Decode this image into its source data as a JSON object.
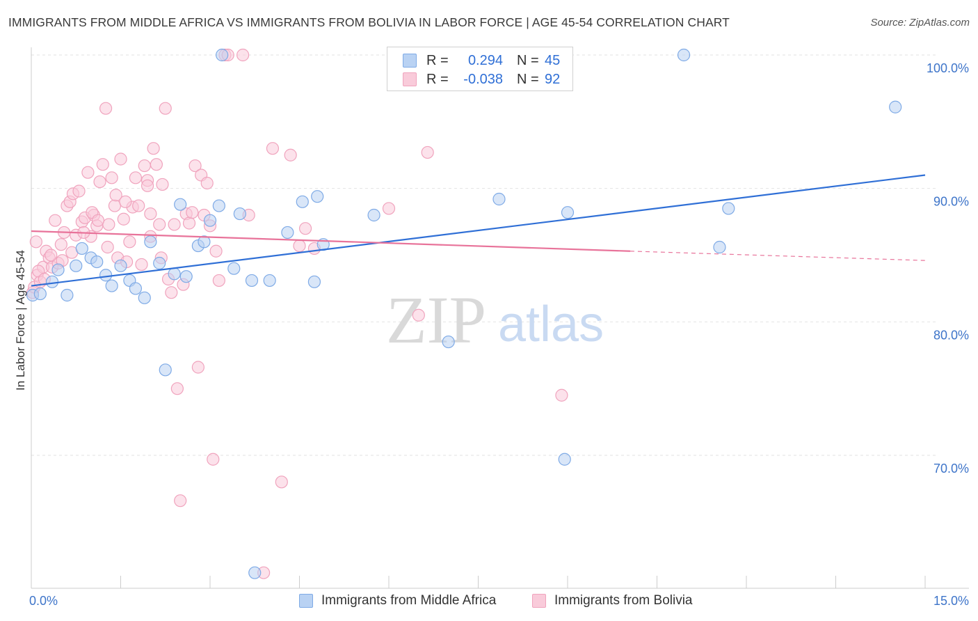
{
  "title": "IMMIGRANTS FROM MIDDLE AFRICA VS IMMIGRANTS FROM BOLIVIA IN LABOR FORCE | AGE 45-54 CORRELATION CHART",
  "source": "Source: ZipAtlas.com",
  "watermark": {
    "zip": "ZIP",
    "atlas": "atlas"
  },
  "legend": {
    "series1": {
      "r_label": "R =",
      "r_value": "0.294",
      "n_label": "N =",
      "n_value": "45"
    },
    "series2": {
      "r_label": "R =",
      "r_value": "-0.038",
      "n_label": "N =",
      "n_value": "92"
    }
  },
  "chart_data": {
    "type": "scatter",
    "title": "IMMIGRANTS FROM MIDDLE AFRICA VS IMMIGRANTS FROM BOLIVIA IN LABOR FORCE | AGE 45-54 CORRELATION CHART",
    "xlabel": "",
    "ylabel": "In Labor Force | Age 45-54",
    "xlim": [
      0,
      15
    ],
    "ylim": [
      61,
      101.5
    ],
    "x_tick_labels": [
      "0.0%",
      "15.0%"
    ],
    "y_ticks": [
      70,
      80,
      90,
      100
    ],
    "y_tick_labels": [
      "70.0%",
      "80.0%",
      "90.0%",
      "100.0%"
    ],
    "grid": true,
    "series": [
      {
        "name": "Immigrants from Middle Africa",
        "color": "#7eaae6",
        "fill": "#b9d2f3",
        "line_color": "#2f6fd6",
        "trend": {
          "x": [
            0,
            15
          ],
          "y": [
            82.7,
            91.0
          ]
        },
        "points": [
          [
            0.0,
            82.0
          ],
          [
            0.15,
            82.1
          ],
          [
            0.35,
            83.0
          ],
          [
            0.45,
            83.9
          ],
          [
            0.6,
            82.0
          ],
          [
            0.75,
            84.2
          ],
          [
            0.85,
            85.5
          ],
          [
            1.0,
            84.8
          ],
          [
            1.1,
            84.5
          ],
          [
            1.25,
            83.5
          ],
          [
            1.35,
            82.7
          ],
          [
            1.5,
            84.2
          ],
          [
            1.65,
            83.1
          ],
          [
            1.75,
            82.5
          ],
          [
            1.9,
            81.8
          ],
          [
            2.0,
            86.0
          ],
          [
            2.15,
            84.4
          ],
          [
            2.25,
            76.4
          ],
          [
            2.4,
            83.6
          ],
          [
            2.5,
            88.8
          ],
          [
            2.6,
            83.4
          ],
          [
            2.8,
            85.7
          ],
          [
            2.9,
            86.0
          ],
          [
            3.0,
            87.6
          ],
          [
            3.15,
            88.7
          ],
          [
            3.2,
            100.0
          ],
          [
            3.4,
            84.0
          ],
          [
            3.5,
            88.1
          ],
          [
            3.7,
            83.1
          ],
          [
            3.75,
            61.2
          ],
          [
            4.0,
            83.1
          ],
          [
            4.3,
            86.7
          ],
          [
            4.55,
            89.0
          ],
          [
            4.75,
            83.0
          ],
          [
            4.8,
            89.4
          ],
          [
            4.9,
            85.8
          ],
          [
            5.75,
            88.0
          ],
          [
            7.0,
            78.5
          ],
          [
            7.85,
            89.2
          ],
          [
            8.95,
            69.7
          ],
          [
            9.0,
            88.2
          ],
          [
            10.95,
            100.0
          ],
          [
            11.55,
            85.6
          ],
          [
            11.7,
            88.5
          ],
          [
            14.5,
            96.1
          ]
        ]
      },
      {
        "name": "Immigrants from Bolivia",
        "color": "#f0a3bd",
        "fill": "#f9cbda",
        "line_color": "#e8739a",
        "trend": {
          "x": [
            0,
            10.05
          ],
          "y": [
            86.8,
            85.3
          ]
        },
        "trend_dashed": {
          "x": [
            10.05,
            15
          ],
          "y": [
            85.3,
            84.6
          ]
        },
        "points": [
          [
            0.0,
            82.2
          ],
          [
            0.05,
            82.6
          ],
          [
            0.1,
            83.5
          ],
          [
            0.15,
            83.0
          ],
          [
            0.2,
            84.1
          ],
          [
            0.25,
            85.3
          ],
          [
            0.3,
            84.8
          ],
          [
            0.35,
            84.1
          ],
          [
            0.4,
            87.6
          ],
          [
            0.45,
            84.4
          ],
          [
            0.5,
            85.8
          ],
          [
            0.55,
            86.7
          ],
          [
            0.6,
            88.7
          ],
          [
            0.65,
            89.0
          ],
          [
            0.7,
            89.6
          ],
          [
            0.75,
            86.5
          ],
          [
            0.8,
            89.8
          ],
          [
            0.85,
            87.5
          ],
          [
            0.9,
            87.8
          ],
          [
            0.95,
            91.2
          ],
          [
            1.0,
            86.4
          ],
          [
            1.05,
            88.0
          ],
          [
            1.1,
            87.2
          ],
          [
            1.15,
            90.5
          ],
          [
            1.2,
            91.8
          ],
          [
            1.25,
            96.0
          ],
          [
            1.3,
            87.3
          ],
          [
            1.35,
            90.8
          ],
          [
            1.4,
            88.7
          ],
          [
            1.45,
            84.8
          ],
          [
            1.5,
            92.2
          ],
          [
            1.55,
            87.7
          ],
          [
            1.6,
            84.5
          ],
          [
            1.65,
            86.0
          ],
          [
            1.7,
            88.6
          ],
          [
            1.75,
            90.8
          ],
          [
            1.8,
            88.7
          ],
          [
            1.85,
            84.3
          ],
          [
            1.9,
            91.7
          ],
          [
            1.95,
            90.6
          ],
          [
            2.0,
            88.1
          ],
          [
            2.05,
            93.0
          ],
          [
            2.1,
            91.8
          ],
          [
            2.15,
            87.3
          ],
          [
            2.2,
            90.3
          ],
          [
            2.25,
            96.0
          ],
          [
            2.3,
            83.2
          ],
          [
            2.35,
            82.2
          ],
          [
            2.4,
            87.3
          ],
          [
            2.45,
            75.0
          ],
          [
            2.5,
            66.6
          ],
          [
            2.55,
            82.8
          ],
          [
            2.6,
            88.1
          ],
          [
            2.65,
            87.4
          ],
          [
            2.7,
            88.2
          ],
          [
            2.75,
            91.7
          ],
          [
            2.8,
            76.6
          ],
          [
            2.85,
            91.0
          ],
          [
            2.9,
            88.0
          ],
          [
            2.95,
            90.4
          ],
          [
            3.0,
            87.2
          ],
          [
            3.05,
            69.7
          ],
          [
            3.1,
            85.3
          ],
          [
            3.15,
            83.1
          ],
          [
            3.25,
            100.0
          ],
          [
            3.3,
            100.0
          ],
          [
            3.55,
            100.0
          ],
          [
            3.65,
            88.0
          ],
          [
            3.9,
            61.2
          ],
          [
            4.05,
            93.0
          ],
          [
            4.2,
            68.0
          ],
          [
            4.35,
            92.5
          ],
          [
            4.5,
            85.7
          ],
          [
            4.6,
            87.0
          ],
          [
            4.75,
            85.5
          ],
          [
            6.0,
            88.5
          ],
          [
            6.5,
            80.5
          ],
          [
            6.65,
            92.7
          ],
          [
            8.9,
            74.5
          ],
          [
            0.12,
            83.8
          ],
          [
            0.22,
            83.2
          ],
          [
            0.33,
            85.0
          ],
          [
            0.52,
            84.6
          ],
          [
            0.68,
            85.2
          ],
          [
            0.88,
            86.7
          ],
          [
            1.02,
            88.2
          ],
          [
            1.12,
            87.6
          ],
          [
            1.28,
            85.6
          ],
          [
            1.42,
            89.5
          ],
          [
            1.58,
            89.0
          ],
          [
            2.0,
            86.4
          ],
          [
            1.95,
            90.2
          ],
          [
            2.18,
            84.8
          ],
          [
            0.08,
            86.0
          ]
        ]
      }
    ]
  }
}
